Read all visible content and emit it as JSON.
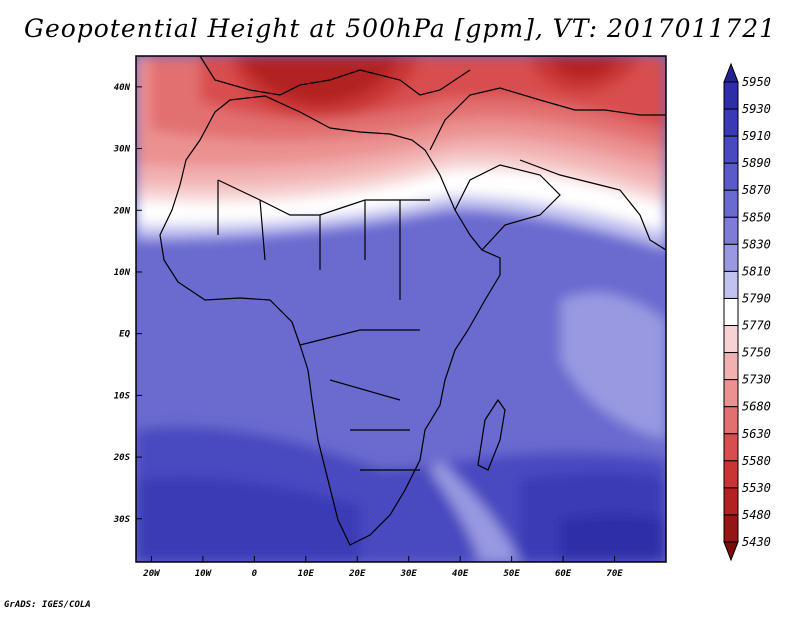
{
  "title": "Geopotential Height at 500hPa [gpm], VT: 2017011721",
  "credit": "GrADS: IGES/COLA",
  "map": {
    "lon_range": [
      -23,
      80
    ],
    "lat_range": [
      -37,
      45
    ],
    "lon_ticks": [
      {
        "value": -20,
        "label": "20W"
      },
      {
        "value": -10,
        "label": "10W"
      },
      {
        "value": 0,
        "label": "0"
      },
      {
        "value": 10,
        "label": "10E"
      },
      {
        "value": 20,
        "label": "20E"
      },
      {
        "value": 30,
        "label": "30E"
      },
      {
        "value": 40,
        "label": "40E"
      },
      {
        "value": 50,
        "label": "50E"
      },
      {
        "value": 60,
        "label": "60E"
      },
      {
        "value": 70,
        "label": "70E"
      }
    ],
    "lat_ticks": [
      {
        "value": 40,
        "label": "40N"
      },
      {
        "value": 30,
        "label": "30N"
      },
      {
        "value": 20,
        "label": "20N"
      },
      {
        "value": 10,
        "label": "10N"
      },
      {
        "value": 0,
        "label": "EQ"
      },
      {
        "value": -10,
        "label": "10S"
      },
      {
        "value": -20,
        "label": "20S"
      },
      {
        "value": -30,
        "label": "30S"
      }
    ]
  },
  "colorbar": {
    "levels": [
      5950,
      5930,
      5910,
      5890,
      5870,
      5850,
      5830,
      5810,
      5790,
      5770,
      5750,
      5730,
      5680,
      5630,
      5580,
      5530,
      5480,
      5430
    ],
    "colors": [
      "#23238f",
      "#2e2ea8",
      "#3a3ab6",
      "#4a4ac0",
      "#5a5ac8",
      "#6a6acf",
      "#7d7dd8",
      "#9999e2",
      "#c2c2f0",
      "#ffffff",
      "#f7d2d2",
      "#f2b1b1",
      "#eb9191",
      "#e27070",
      "#d84e4e",
      "#c93434",
      "#b22222",
      "#961515",
      "#7a0c0c"
    ]
  }
}
